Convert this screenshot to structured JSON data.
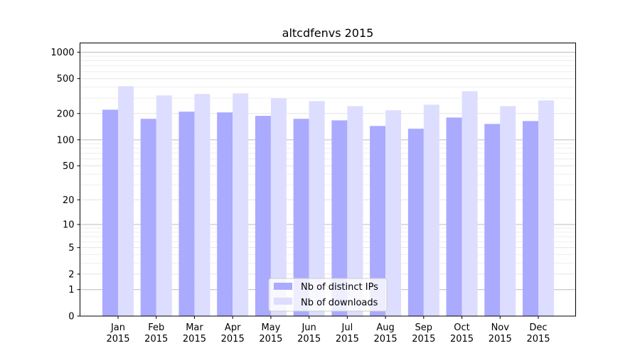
{
  "chart_data": {
    "type": "bar",
    "title": "altcdfenvs 2015",
    "xlabel": "",
    "ylabel": "",
    "y_scale": "log(y+1)",
    "ylim": [
      0,
      1273
    ],
    "y_ticks": [
      0,
      1,
      2,
      5,
      10,
      20,
      50,
      100,
      200,
      500,
      1000
    ],
    "grid": true,
    "legend_position": "bottom-center",
    "categories": [
      "Jan\n2015",
      "Feb\n2015",
      "Mar\n2015",
      "Apr\n2015",
      "May\n2015",
      "Jun\n2015",
      "Jul\n2015",
      "Aug\n2015",
      "Sep\n2015",
      "Oct\n2015",
      "Nov\n2015",
      "Dec\n2015"
    ],
    "series": [
      {
        "name": "Nb of distinct IPs",
        "color": "#aaaaff",
        "values": [
          221,
          174,
          210,
          206,
          188,
          174,
          167,
          144,
          134,
          180,
          152,
          164
        ]
      },
      {
        "name": "Nb of downloads",
        "color": "#ddddff",
        "values": [
          410,
          322,
          334,
          340,
          299,
          277,
          243,
          218,
          252,
          359,
          243,
          282
        ]
      }
    ]
  }
}
